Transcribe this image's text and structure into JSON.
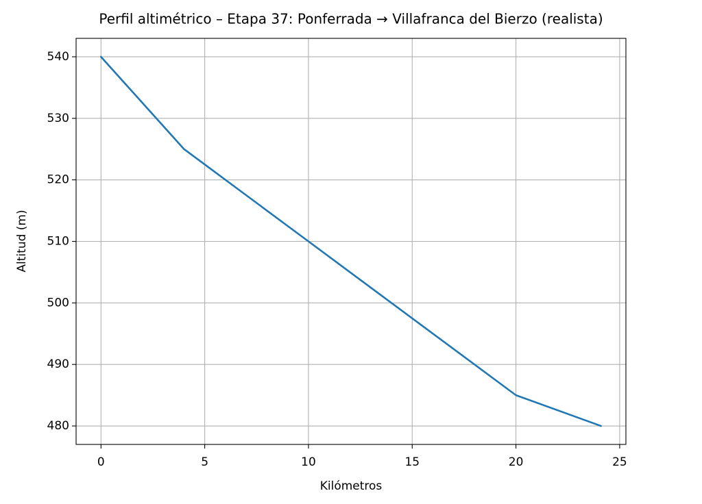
{
  "chart_data": {
    "type": "line",
    "title": "Perfil altimétrico – Etapa 37: Ponferrada → Villafranca del Bierzo (realista)",
    "x_label": "Kilómetros",
    "y_label": "Altitud (m)",
    "x": [
      0,
      4,
      10,
      20,
      24.1
    ],
    "series": [
      {
        "name": "Altitud",
        "color": "#1f77b4",
        "values": [
          540,
          525,
          510,
          485,
          480
        ]
      }
    ],
    "xlim": [
      -1.2,
      25.3
    ],
    "xticks": [
      0,
      5,
      10,
      15,
      20,
      25
    ],
    "ylim": [
      477,
      543
    ],
    "yticks": [
      480,
      490,
      500,
      510,
      520,
      530,
      540
    ],
    "grid": true
  }
}
